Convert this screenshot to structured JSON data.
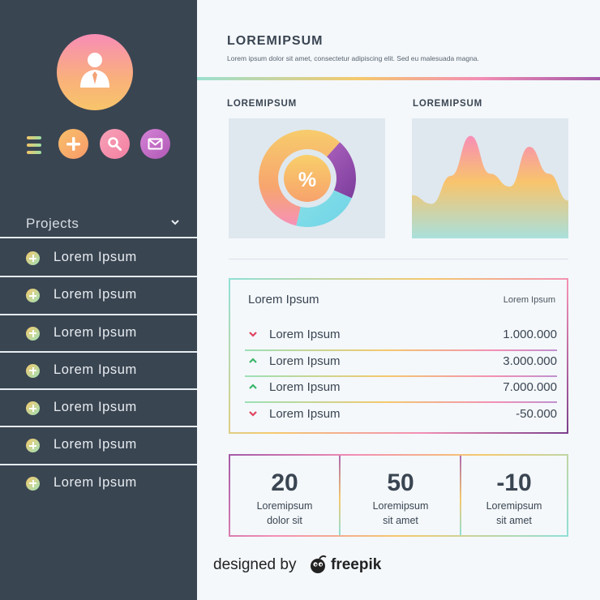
{
  "sidebar": {
    "projects_label": "Projects",
    "items": [
      {
        "label": "Lorem Ipsum"
      },
      {
        "label": "Lorem Ipsum"
      },
      {
        "label": "Lorem Ipsum"
      },
      {
        "label": "Lorem Ipsum"
      },
      {
        "label": "Lorem Ipsum"
      },
      {
        "label": "Lorem Ipsum"
      },
      {
        "label": "Lorem Ipsum"
      }
    ],
    "icons": [
      "user-icon",
      "menu-icon",
      "plus-icon",
      "search-icon",
      "mail-icon",
      "chevron-down-icon"
    ]
  },
  "header": {
    "title": "LOREMIPSUM",
    "subtitle": "Lorem ipsum dolor sit amet, consectetur adipiscing elit. Sed eu malesuada magna."
  },
  "cards": {
    "left_title": "LOREMIPSUM",
    "right_title": "LOREMIPSUM",
    "donut_symbol": "%"
  },
  "chart_data": [
    {
      "type": "pie",
      "values": [
        58,
        22,
        20
      ],
      "colors": [
        "#f8b870",
        "#7fdbe6",
        "#9b4fb6"
      ]
    },
    {
      "type": "area",
      "x": [
        0,
        1,
        2,
        3,
        4,
        5,
        6,
        7,
        8
      ],
      "values": [
        40,
        32,
        58,
        95,
        60,
        48,
        85,
        60,
        35
      ]
    }
  ],
  "table": {
    "title": "Lorem Ipsum",
    "column_label": "Lorem Ipsum",
    "rows": [
      {
        "label": "Lorem Ipsum",
        "value": "1.000.000",
        "trend": "down"
      },
      {
        "label": "Lorem Ipsum",
        "value": "3.000.000",
        "trend": "up"
      },
      {
        "label": "Lorem Ipsum",
        "value": "7.000.000",
        "trend": "up"
      },
      {
        "label": "Lorem Ipsum",
        "value": "-50.000",
        "trend": "down"
      }
    ]
  },
  "stats": [
    {
      "value": "20",
      "line1": "Loremipsum",
      "line2": "dolor sit"
    },
    {
      "value": "50",
      "line1": "Loremipsum",
      "line2": "sit amet"
    },
    {
      "value": "-10",
      "line1": "Loremipsum",
      "line2": "sit amet"
    }
  ],
  "credit": {
    "prefix": "designed by",
    "brand": "freepik"
  },
  "colors": {
    "sidebar": "#3a4552",
    "text": "#3a4552",
    "up": "#3bb56a",
    "down": "#e0425e"
  }
}
